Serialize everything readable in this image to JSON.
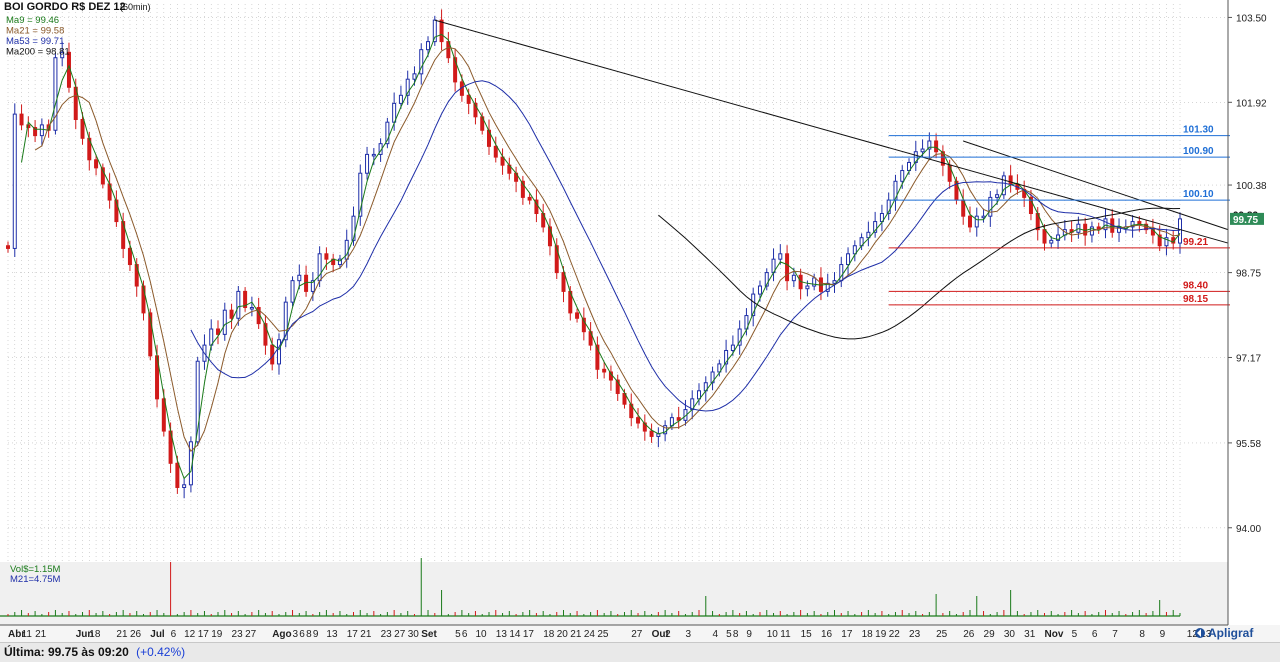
{
  "header": {
    "title": "BOI GORDO R$ DEZ 12",
    "interval": "(60min)"
  },
  "legend": [
    {
      "label": "Ma9 = 99.46",
      "color": "#1a7a1a"
    },
    {
      "label": "Ma21 = 99.58",
      "color": "#8b5a2b"
    },
    {
      "label": "Ma53 = 99.71",
      "color": "#1f2fa8"
    },
    {
      "label": "Ma200 = 98.81",
      "color": "#111111"
    }
  ],
  "volume_legend": [
    {
      "label": "Vol$=1.15M",
      "color": "#1a7a1a"
    },
    {
      "label": "M21=4.75M",
      "color": "#1f2fa8"
    }
  ],
  "price_axis_ticks": [
    "103.50",
    "101.92",
    "100.38",
    "98.75",
    "97.17",
    "95.58",
    "94.00"
  ],
  "levels": [
    {
      "label": "101.30",
      "value": 101.3,
      "color": "#1f6fd6"
    },
    {
      "label": "100.90",
      "value": 100.9,
      "color": "#1f6fd6"
    },
    {
      "label": "100.10",
      "value": 100.1,
      "color": "#1f6fd6"
    },
    {
      "label": "99.21",
      "value": 99.21,
      "color": "#d11a1a"
    },
    {
      "label": "98.40",
      "value": 98.4,
      "color": "#d11a1a"
    },
    {
      "label": "98.15",
      "value": 98.15,
      "color": "#d11a1a"
    }
  ],
  "axis_markers": [
    {
      "label": "99.83",
      "value": 99.83,
      "bg": "#ffffff",
      "fg": "#111111"
    },
    {
      "label": "99.75",
      "value": 99.75,
      "bg": "#2e8b57",
      "fg": "#ffffff"
    }
  ],
  "x_labels": [
    {
      "label": "Abr",
      "x": 0,
      "bold": true
    },
    {
      "label": "11",
      "x": 2,
      "bold": false
    },
    {
      "label": "21",
      "x": 4,
      "bold": false
    },
    {
      "label": "Jun",
      "x": 10,
      "bold": true
    },
    {
      "label": "18",
      "x": 12,
      "bold": false
    },
    {
      "label": "21",
      "x": 16,
      "bold": false
    },
    {
      "label": "26",
      "x": 18,
      "bold": false
    },
    {
      "label": "Jul",
      "x": 21,
      "bold": true
    },
    {
      "label": "6",
      "x": 24,
      "bold": false
    },
    {
      "label": "12",
      "x": 26,
      "bold": false
    },
    {
      "label": "17",
      "x": 28,
      "bold": false
    },
    {
      "label": "19",
      "x": 30,
      "bold": false
    },
    {
      "label": "23",
      "x": 33,
      "bold": false
    },
    {
      "label": "27",
      "x": 35,
      "bold": false
    },
    {
      "label": "Ago",
      "x": 39,
      "bold": true
    },
    {
      "label": "3",
      "x": 42,
      "bold": false
    },
    {
      "label": "6",
      "x": 43,
      "bold": false
    },
    {
      "label": "8",
      "x": 44,
      "bold": false
    },
    {
      "label": "9",
      "x": 45,
      "bold": false
    },
    {
      "label": "13",
      "x": 47,
      "bold": false
    },
    {
      "label": "17",
      "x": 50,
      "bold": false
    },
    {
      "label": "21",
      "x": 52,
      "bold": false
    },
    {
      "label": "23",
      "x": 55,
      "bold": false
    },
    {
      "label": "27",
      "x": 57,
      "bold": false
    },
    {
      "label": "30",
      "x": 59,
      "bold": false
    },
    {
      "label": "Set",
      "x": 61,
      "bold": true
    },
    {
      "label": "5",
      "x": 66,
      "bold": false
    },
    {
      "label": "6",
      "x": 67,
      "bold": false
    },
    {
      "label": "10",
      "x": 69,
      "bold": false
    },
    {
      "label": "13",
      "x": 72,
      "bold": false
    },
    {
      "label": "14",
      "x": 74,
      "bold": false
    },
    {
      "label": "17",
      "x": 76,
      "bold": false
    },
    {
      "label": "18",
      "x": 79,
      "bold": false
    },
    {
      "label": "20",
      "x": 81,
      "bold": false
    },
    {
      "label": "21",
      "x": 83,
      "bold": false
    },
    {
      "label": "24",
      "x": 85,
      "bold": false
    },
    {
      "label": "25",
      "x": 87,
      "bold": false
    },
    {
      "label": "27",
      "x": 92,
      "bold": false
    },
    {
      "label": "Out",
      "x": 95,
      "bold": true
    },
    {
      "label": "2",
      "x": 97,
      "bold": false
    },
    {
      "label": "3",
      "x": 100,
      "bold": false
    },
    {
      "label": "4",
      "x": 104,
      "bold": false
    },
    {
      "label": "5",
      "x": 106,
      "bold": false
    },
    {
      "label": "8",
      "x": 107,
      "bold": false
    },
    {
      "label": "9",
      "x": 109,
      "bold": false
    },
    {
      "label": "10",
      "x": 112,
      "bold": false
    },
    {
      "label": "11",
      "x": 114,
      "bold": false
    },
    {
      "label": "15",
      "x": 117,
      "bold": false
    },
    {
      "label": "16",
      "x": 120,
      "bold": false
    },
    {
      "label": "17",
      "x": 123,
      "bold": false
    },
    {
      "label": "18",
      "x": 126,
      "bold": false
    },
    {
      "label": "19",
      "x": 128,
      "bold": false
    },
    {
      "label": "22",
      "x": 130,
      "bold": false
    },
    {
      "label": "23",
      "x": 133,
      "bold": false
    },
    {
      "label": "25",
      "x": 137,
      "bold": false
    },
    {
      "label": "26",
      "x": 141,
      "bold": false
    },
    {
      "label": "29",
      "x": 144,
      "bold": false
    },
    {
      "label": "30",
      "x": 147,
      "bold": false
    },
    {
      "label": "31",
      "x": 150,
      "bold": false
    },
    {
      "label": "Nov",
      "x": 153,
      "bold": true
    },
    {
      "label": "5",
      "x": 157,
      "bold": false
    },
    {
      "label": "6",
      "x": 160,
      "bold": false
    },
    {
      "label": "7",
      "x": 163,
      "bold": false
    },
    {
      "label": "8",
      "x": 167,
      "bold": false
    },
    {
      "label": "9",
      "x": 170,
      "bold": false
    },
    {
      "label": "12",
      "x": 174,
      "bold": false
    },
    {
      "label": "13",
      "x": 176,
      "bold": false
    }
  ],
  "chart_data": {
    "type": "candlestick",
    "title": "BOI GORDO R$ DEZ 12",
    "subtitle": "(60min)",
    "ylim": [
      93.4,
      103.75
    ],
    "y_ticks": [
      103.5,
      101.92,
      100.38,
      98.75,
      97.17,
      95.58,
      94.0
    ],
    "grid": true,
    "close": [
      99.2,
      101.7,
      101.5,
      101.45,
      101.3,
      101.5,
      101.4,
      102.75,
      102.85,
      102.2,
      101.6,
      101.25,
      100.85,
      100.7,
      100.4,
      100.1,
      99.7,
      99.2,
      98.9,
      98.5,
      98.0,
      97.2,
      96.4,
      95.8,
      95.2,
      94.75,
      94.8,
      95.6,
      97.1,
      97.4,
      97.7,
      97.6,
      98.05,
      97.9,
      98.4,
      98.1,
      98.1,
      97.8,
      97.4,
      97.05,
      97.5,
      98.2,
      98.6,
      98.7,
      98.4,
      98.6,
      99.1,
      99.0,
      98.9,
      99.0,
      99.35,
      99.8,
      100.6,
      100.95,
      100.95,
      101.15,
      101.55,
      101.9,
      102.05,
      102.35,
      102.45,
      102.9,
      103.05,
      103.45,
      103.05,
      102.75,
      102.3,
      102.05,
      101.9,
      101.65,
      101.4,
      101.1,
      100.9,
      100.75,
      100.6,
      100.45,
      100.15,
      100.1,
      99.85,
      99.6,
      99.25,
      98.75,
      98.4,
      98.0,
      97.9,
      97.65,
      97.4,
      96.95,
      96.9,
      96.75,
      96.5,
      96.3,
      96.05,
      95.95,
      95.8,
      95.7,
      95.75,
      95.9,
      96.05,
      96.0,
      96.2,
      96.4,
      96.55,
      96.7,
      96.9,
      97.05,
      97.3,
      97.4,
      97.7,
      97.95,
      98.35,
      98.5,
      98.75,
      99.0,
      99.1,
      98.6,
      98.7,
      98.45,
      98.5,
      98.65,
      98.4,
      98.55,
      98.6,
      98.9,
      99.1,
      99.25,
      99.4,
      99.5,
      99.7,
      99.85,
      100.1,
      100.45,
      100.65,
      100.8,
      101.0,
      101.05,
      101.2,
      101.0,
      100.75,
      100.45,
      100.1,
      99.8,
      99.6,
      99.8,
      99.8,
      100.15,
      100.2,
      100.55,
      100.4,
      100.3,
      100.15,
      99.85,
      99.55,
      99.3,
      99.35,
      99.45,
      99.55,
      99.5,
      99.65,
      99.45,
      99.6,
      99.55,
      99.75,
      99.5,
      99.6,
      99.6,
      99.7,
      99.65,
      99.55,
      99.45,
      99.25,
      99.4,
      99.3,
      99.75
    ],
    "ma_labels": [
      "Ma9 = 99.46",
      "Ma21 = 99.58",
      "Ma53 = 99.71",
      "Ma200 = 98.81"
    ],
    "volume_labels": [
      "Vol$=1.15M",
      "M21=4.75M"
    ],
    "x_tick_labels": [
      "Abr",
      "11",
      "21",
      "Jun",
      "18",
      "21",
      "26",
      "Jul",
      "6",
      "12",
      "17",
      "19",
      "23",
      "27",
      "Ago",
      "3",
      "6",
      "8",
      "9",
      "13",
      "17",
      "21",
      "23",
      "27",
      "30",
      "Set",
      "5",
      "6",
      "10",
      "13",
      "14",
      "17",
      "18",
      "20",
      "21",
      "24",
      "25",
      "27",
      "Out",
      "2",
      "3",
      "4",
      "5",
      "8",
      "9",
      "10",
      "11",
      "15",
      "16",
      "17",
      "18",
      "19",
      "22",
      "23",
      "25",
      "26",
      "29",
      "30",
      "31",
      "Nov",
      "5",
      "6",
      "7",
      "8",
      "9",
      "12",
      "13"
    ],
    "horizontal_levels": [
      101.3,
      100.9,
      100.1,
      99.21,
      98.4,
      98.15
    ],
    "last_price": 99.75,
    "change_pct": 0.42
  },
  "status": {
    "last_label": "Última: 99.75 às 09:20",
    "change_label": "(+0.42%)"
  },
  "brand": "Apligraf",
  "colors": {
    "up": "#1f2fa8",
    "down": "#d11a1a",
    "grid": "#bdbdbd",
    "volume_bg": "#f0f0f0"
  }
}
